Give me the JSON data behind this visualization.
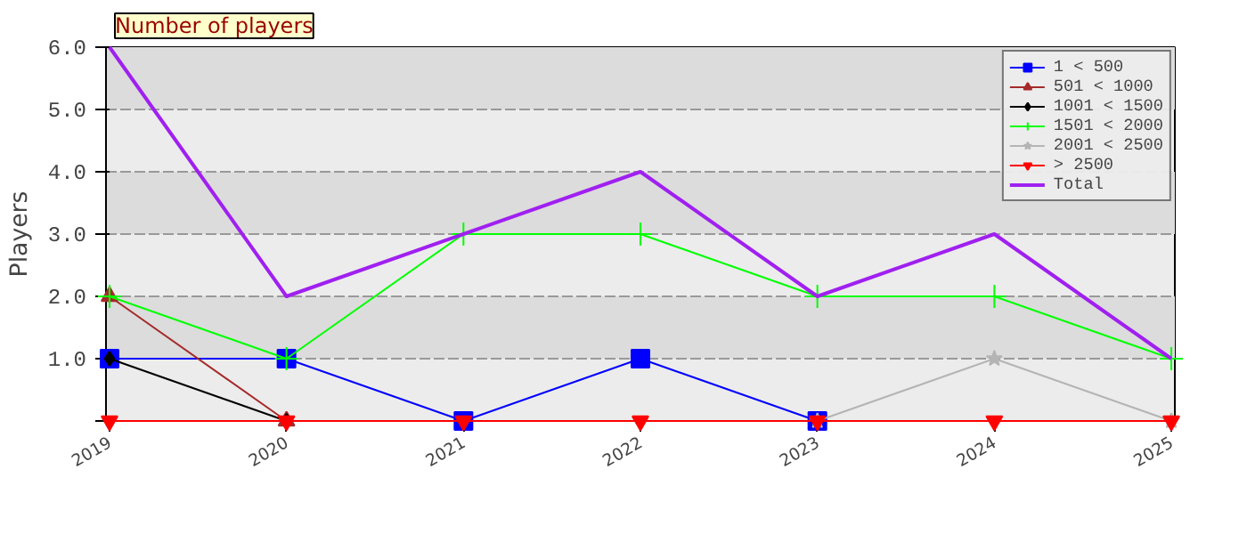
{
  "chart_data": {
    "type": "line",
    "title": "Number of players",
    "ylabel": "Players",
    "categories": [
      "2019",
      "2020",
      "2021",
      "2022",
      "2023",
      "2024",
      "2025"
    ],
    "series": [
      {
        "name": "1 < 500",
        "color": "#0000ff",
        "marker": "square",
        "values": [
          1,
          1,
          0,
          1,
          0,
          null,
          null
        ]
      },
      {
        "name": "501 < 1000",
        "color": "#a52a2a",
        "marker": "triangle",
        "values": [
          2,
          0,
          null,
          null,
          null,
          null,
          null
        ]
      },
      {
        "name": "1001 < 1500",
        "color": "#000000",
        "marker": "diamond",
        "values": [
          1,
          0,
          null,
          null,
          null,
          null,
          null
        ]
      },
      {
        "name": "1501 < 2000",
        "color": "#00ff00",
        "marker": "cross",
        "values": [
          2,
          1,
          3,
          3,
          2,
          2,
          1
        ]
      },
      {
        "name": "2001 < 2500",
        "color": "#b4b4b4",
        "marker": "star",
        "values": [
          null,
          null,
          null,
          null,
          0,
          1,
          0
        ]
      },
      {
        "name": "> 2500",
        "color": "#ff0000",
        "marker": "triangle_down",
        "values": [
          0,
          0,
          0,
          0,
          0,
          0,
          0
        ]
      },
      {
        "name": "Total",
        "color": "#a020f0",
        "marker": "none",
        "values": [
          6,
          2,
          3,
          4,
          2,
          3,
          1
        ]
      }
    ],
    "ylim": [
      0,
      6
    ],
    "yticks": [
      {
        "value": 0,
        "label": null
      },
      {
        "value": 1,
        "label": "1.0"
      },
      {
        "value": 2,
        "label": "2.0"
      },
      {
        "value": 3,
        "label": "3.0"
      },
      {
        "value": 4,
        "label": "4.0"
      },
      {
        "value": 5,
        "label": "5.0"
      },
      {
        "value": 6,
        "label": "6.0"
      }
    ],
    "grid": "y",
    "legend": "top right"
  }
}
